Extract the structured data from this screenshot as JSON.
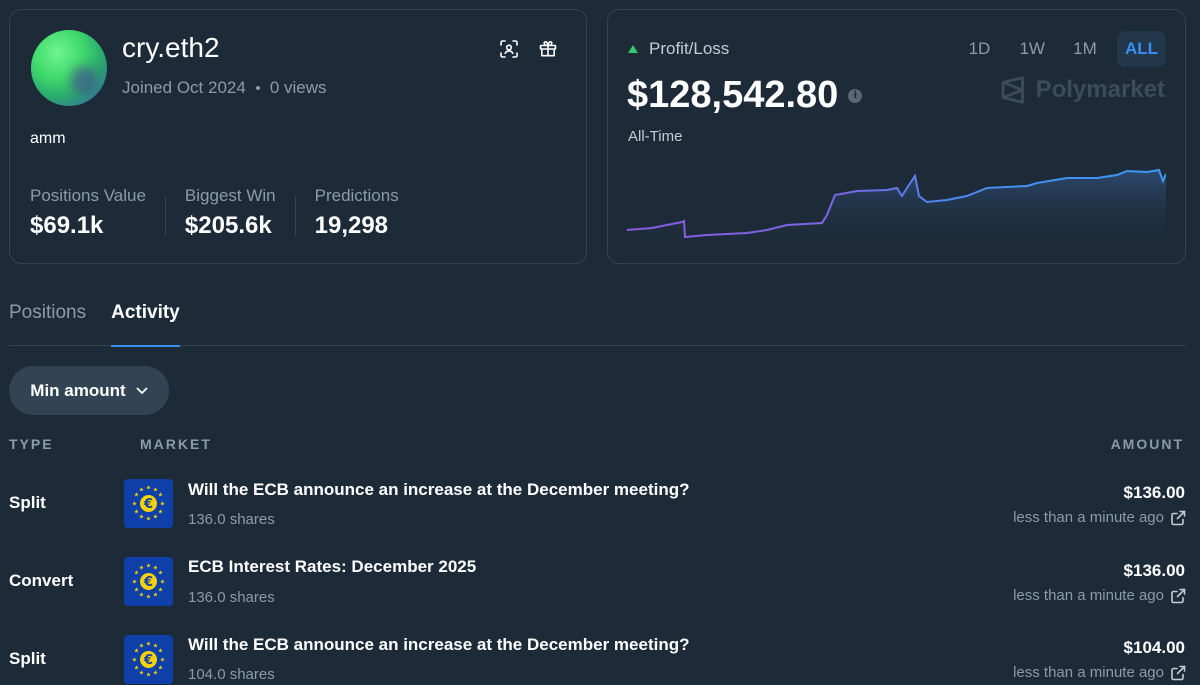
{
  "profile": {
    "username": "cry.eth2",
    "joined": "Joined Oct 2024",
    "views": "0 views",
    "bio": "amm",
    "stats": [
      {
        "label": "Positions Value",
        "value": "$69.1k"
      },
      {
        "label": "Biggest Win",
        "value": "$205.6k"
      },
      {
        "label": "Predictions",
        "value": "19,298"
      }
    ]
  },
  "pnl": {
    "title": "Profit/Loss",
    "amount": "$128,542.80",
    "period": "All-Time",
    "ranges": [
      "1D",
      "1W",
      "1M",
      "ALL"
    ],
    "active_range": "ALL",
    "watermark": "Polymarket",
    "trend_color": "#3ac56a"
  },
  "tabs": [
    "Positions",
    "Activity"
  ],
  "active_tab": "Activity",
  "filter": {
    "label": "Min amount"
  },
  "table": {
    "headers": {
      "type": "TYPE",
      "market": "MARKET",
      "amount": "AMOUNT"
    },
    "rows": [
      {
        "type": "Split",
        "title": "Will the ECB announce an increase at the December meeting?",
        "shares": "136.0 shares",
        "amount": "$136.00",
        "time": "less than a minute ago",
        "icon": "eu-flag-euro-icon"
      },
      {
        "type": "Convert",
        "title": "ECB Interest Rates: December 2025",
        "shares": "136.0 shares",
        "amount": "$136.00",
        "time": "less than a minute ago",
        "icon": "eu-flag-euro-icon"
      },
      {
        "type": "Split",
        "title": "Will the ECB announce an increase at the December meeting?",
        "shares": "104.0 shares",
        "amount": "$104.00",
        "time": "less than a minute ago",
        "icon": "eu-flag-euro-icon"
      }
    ]
  },
  "colors": {
    "background": "#1d2b39",
    "accent": "#3b8ff2",
    "muted_text": "#8c9baa",
    "positive": "#3ac56a"
  }
}
